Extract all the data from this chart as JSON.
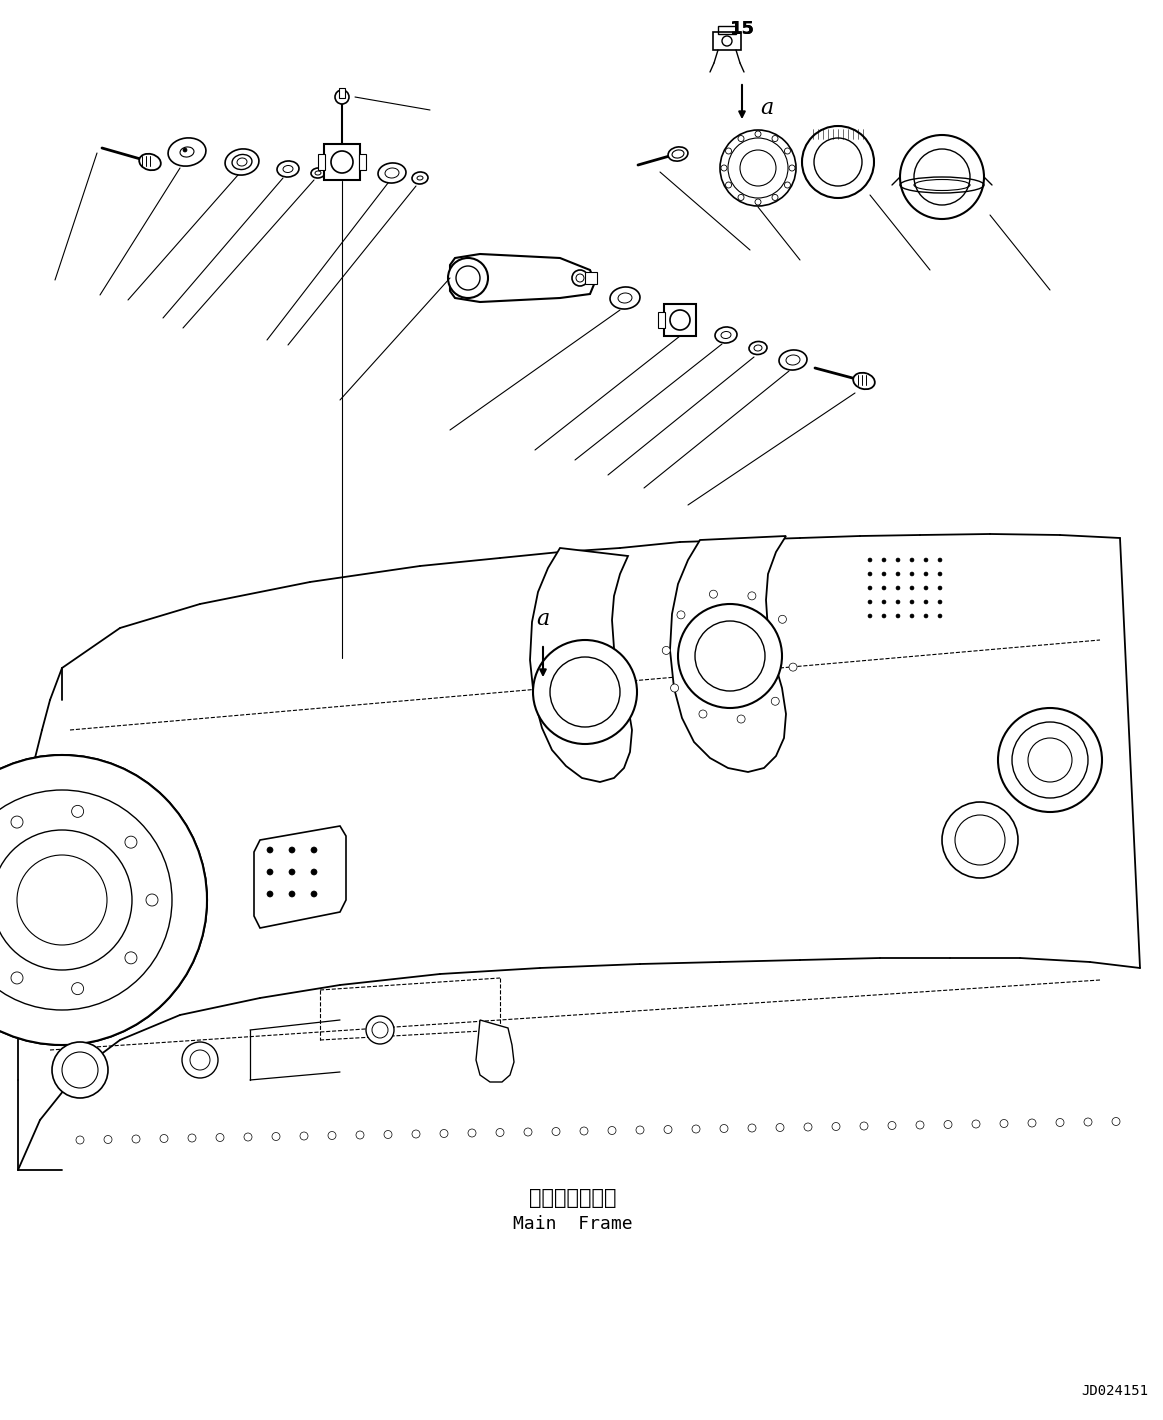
{
  "bg_color": "#ffffff",
  "line_color": "#000000",
  "fig_width": 11.63,
  "fig_height": 14.2,
  "doc_number": "JD024151",
  "label_15": "15",
  "label_a1": "a",
  "label_a2": "a",
  "main_frame_jp": "メインフレーム",
  "main_frame_en": "Main  Frame"
}
